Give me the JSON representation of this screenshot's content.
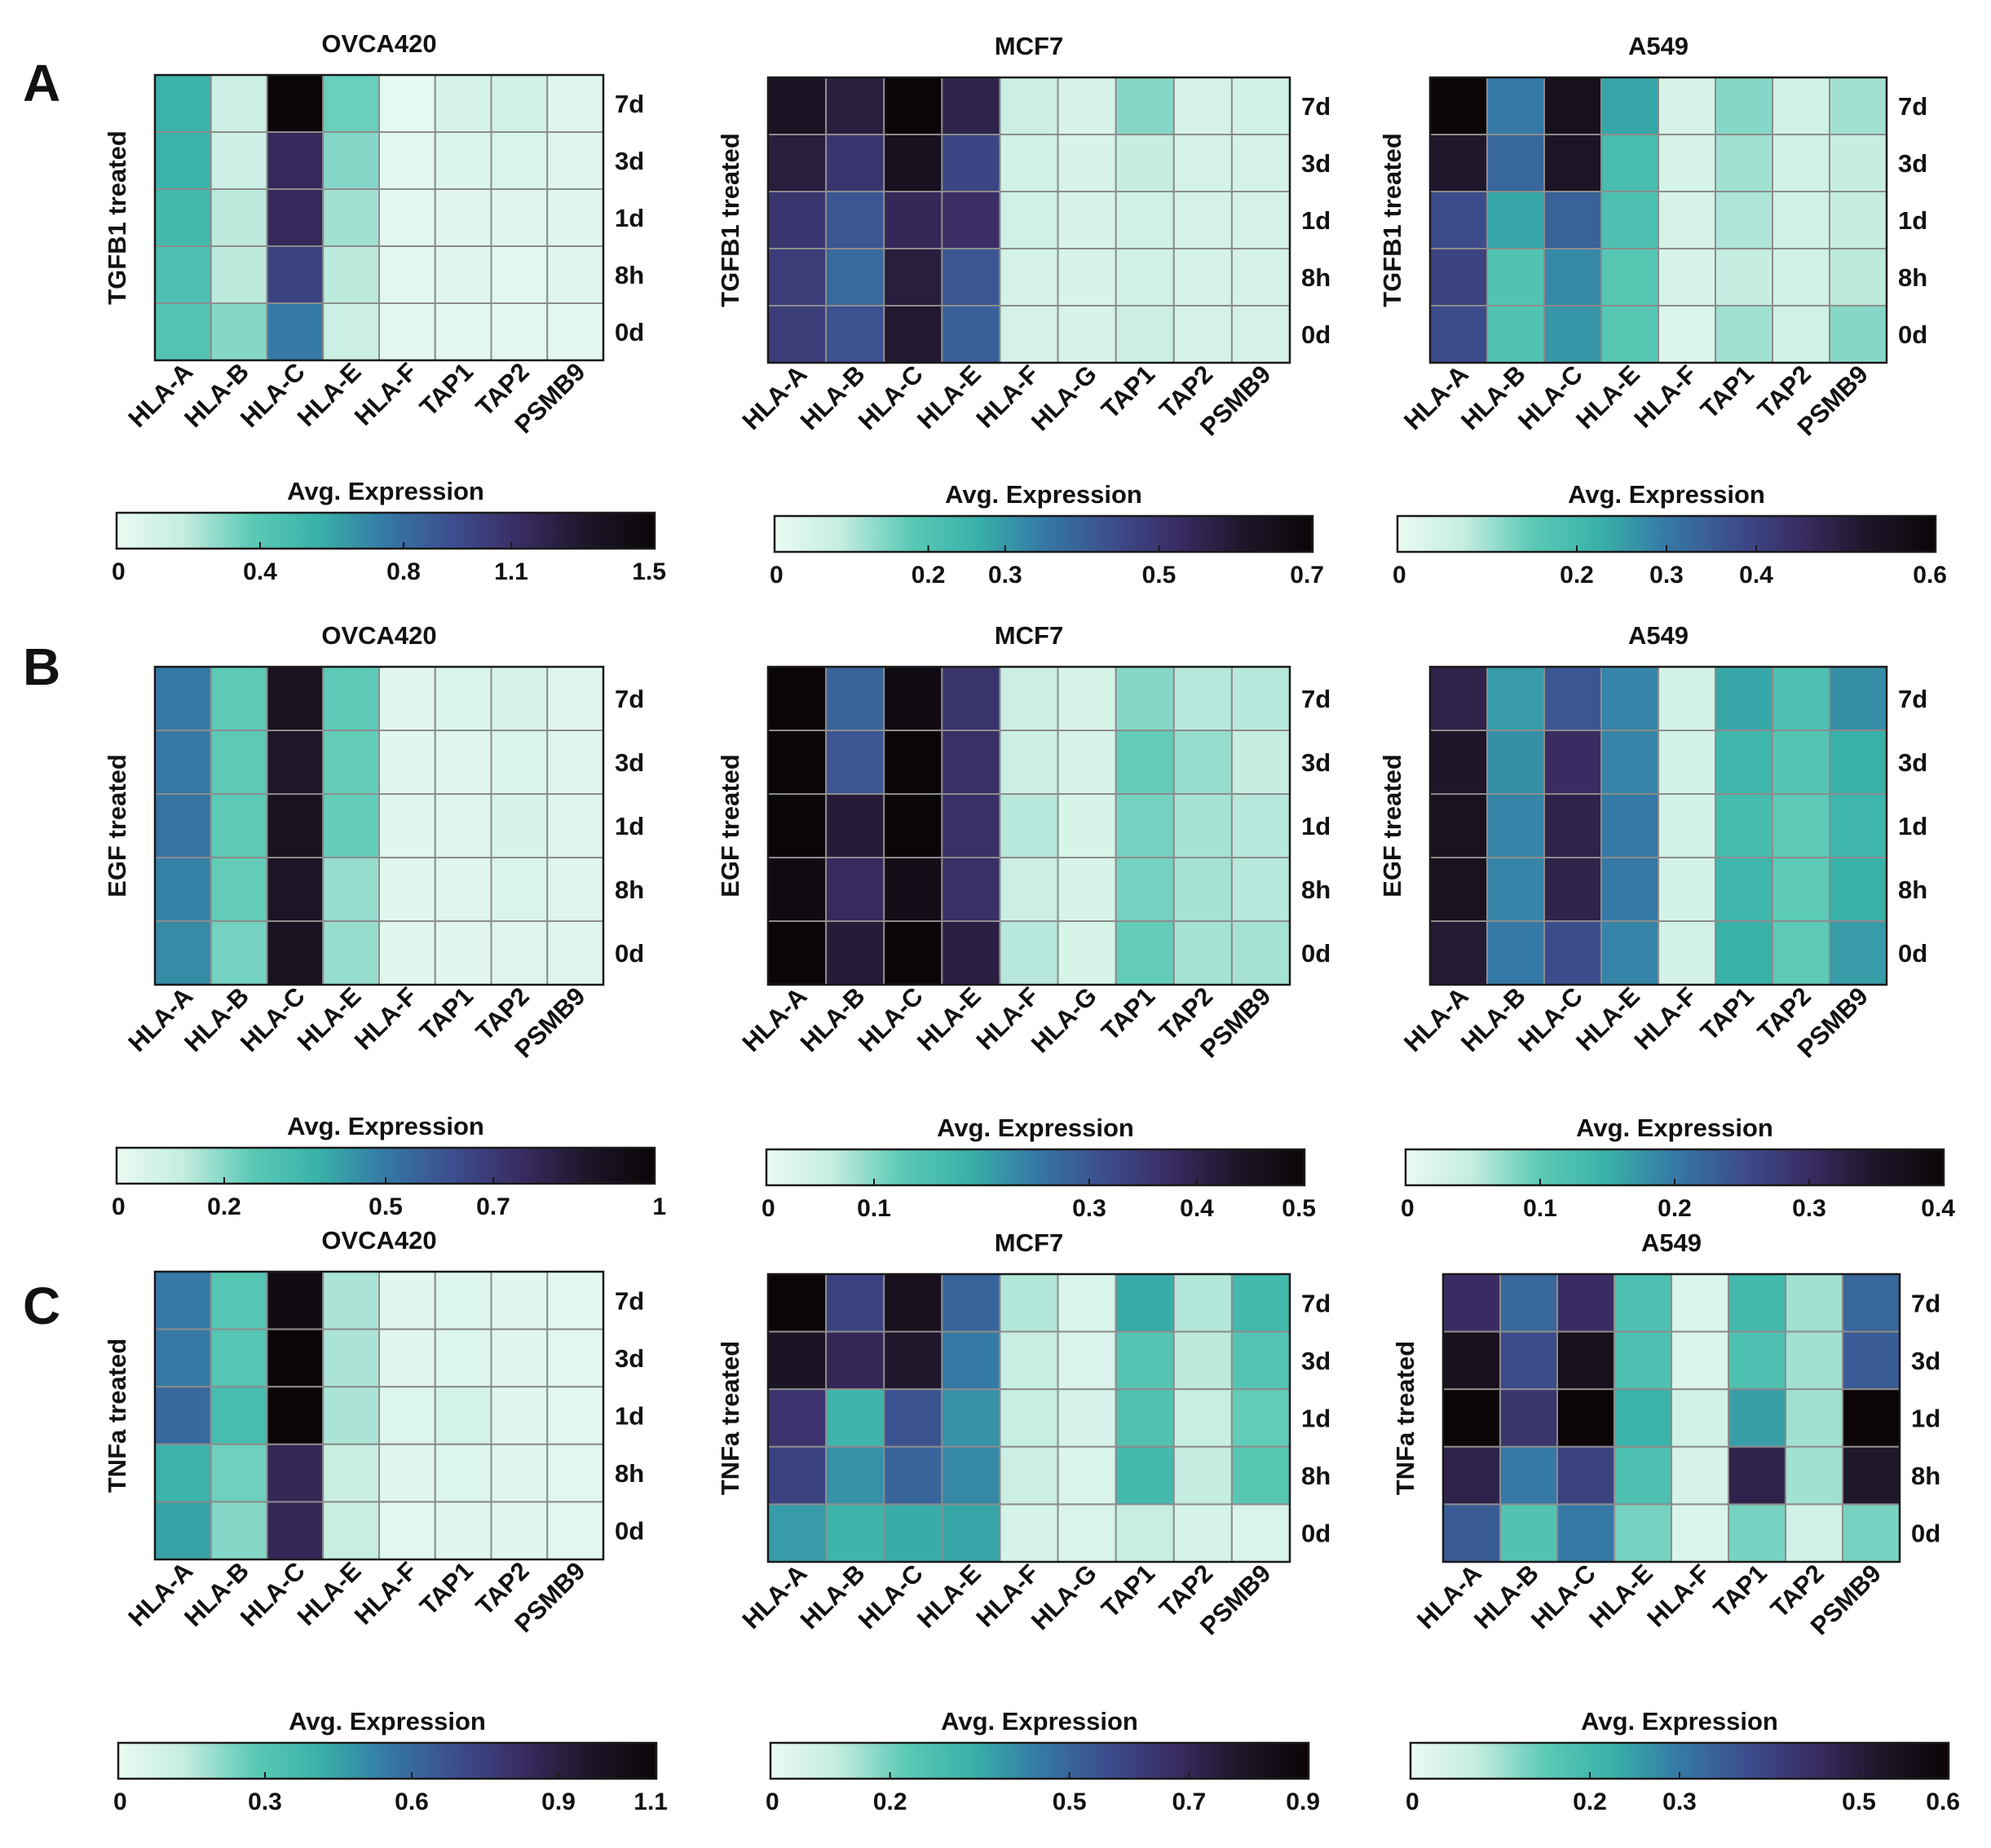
{
  "colormap": {
    "name": "white-teal-blue-purple-black",
    "stops": [
      "#eafbf2",
      "#c3ece0",
      "#5ccab6",
      "#38b1a9",
      "#3579a6",
      "#3c4d8e",
      "#3a2c63",
      "#1e1528",
      "#0b0507"
    ]
  },
  "panel_letters": [
    "A",
    "B",
    "C"
  ],
  "rows": [
    "7d",
    "3d",
    "1d",
    "8h",
    "0d"
  ],
  "colorbar_title": "Avg. Expression",
  "chart_data": [
    {
      "type": "heatmap",
      "panel": "A",
      "title": "OVCA420",
      "ylabel": "TGFB1 treated",
      "columns": [
        "HLA-A",
        "HLA-B",
        "HLA-C",
        "HLA-E",
        "HLA-F",
        "TAP1",
        "TAP2",
        "PSMB9"
      ],
      "rows": [
        "7d",
        "3d",
        "1d",
        "8h",
        "0d"
      ],
      "values": [
        [
          0.55,
          0.15,
          1.5,
          0.35,
          0.03,
          0.1,
          0.13,
          0.06
        ],
        [
          0.55,
          0.15,
          1.15,
          0.3,
          0.04,
          0.07,
          0.08,
          0.06
        ],
        [
          0.5,
          0.2,
          1.15,
          0.25,
          0.04,
          0.05,
          0.05,
          0.05
        ],
        [
          0.45,
          0.2,
          1.0,
          0.2,
          0.04,
          0.05,
          0.04,
          0.05
        ],
        [
          0.42,
          0.3,
          0.75,
          0.15,
          0.04,
          0.04,
          0.04,
          0.04
        ]
      ],
      "colorbar": {
        "label": "Avg. Expression",
        "min": 0,
        "max": 1.5,
        "ticks": [
          0,
          0.4,
          0.8,
          1.1,
          1.5
        ]
      }
    },
    {
      "type": "heatmap",
      "panel": "A",
      "title": "MCF7",
      "ylabel": "TGFB1 treated",
      "columns": [
        "HLA-A",
        "HLA-B",
        "HLA-C",
        "HLA-E",
        "HLA-F",
        "HLA-G",
        "TAP1",
        "TAP2",
        "PSMB9"
      ],
      "rows": [
        "7d",
        "3d",
        "1d",
        "8h",
        "0d"
      ],
      "values": [
        [
          0.62,
          0.58,
          0.7,
          0.56,
          0.07,
          0.04,
          0.14,
          0.05,
          0.06
        ],
        [
          0.58,
          0.5,
          0.64,
          0.46,
          0.06,
          0.04,
          0.08,
          0.05,
          0.05
        ],
        [
          0.5,
          0.42,
          0.54,
          0.52,
          0.06,
          0.04,
          0.06,
          0.05,
          0.05
        ],
        [
          0.48,
          0.38,
          0.58,
          0.42,
          0.05,
          0.04,
          0.06,
          0.05,
          0.05
        ],
        [
          0.48,
          0.43,
          0.6,
          0.4,
          0.05,
          0.04,
          0.07,
          0.05,
          0.05
        ]
      ],
      "colorbar": {
        "label": "Avg. Expression",
        "min": 0,
        "max": 0.7,
        "ticks": [
          0,
          0.2,
          0.3,
          0.5,
          0.7
        ]
      }
    },
    {
      "type": "heatmap",
      "panel": "A",
      "title": "A549",
      "ylabel": "TGFB1 treated",
      "columns": [
        "HLA-A",
        "HLA-B",
        "HLA-C",
        "HLA-E",
        "HLA-F",
        "TAP1",
        "TAP2",
        "PSMB9"
      ],
      "rows": [
        "7d",
        "3d",
        "1d",
        "8h",
        "0d"
      ],
      "values": [
        [
          0.6,
          0.3,
          0.55,
          0.24,
          0.04,
          0.12,
          0.05,
          0.1
        ],
        [
          0.52,
          0.33,
          0.53,
          0.19,
          0.04,
          0.1,
          0.05,
          0.07
        ],
        [
          0.38,
          0.24,
          0.34,
          0.18,
          0.04,
          0.09,
          0.05,
          0.07
        ],
        [
          0.4,
          0.17,
          0.28,
          0.16,
          0.04,
          0.07,
          0.05,
          0.08
        ],
        [
          0.38,
          0.17,
          0.26,
          0.16,
          0.03,
          0.1,
          0.05,
          0.12
        ]
      ],
      "colorbar": {
        "label": "Avg. Expression",
        "min": 0,
        "max": 0.6,
        "ticks": [
          0,
          0.2,
          0.3,
          0.4,
          0.6
        ]
      }
    },
    {
      "type": "heatmap",
      "panel": "B",
      "title": "OVCA420",
      "ylabel": "EGF treated",
      "columns": [
        "HLA-A",
        "HLA-B",
        "HLA-C",
        "HLA-E",
        "HLA-F",
        "TAP1",
        "TAP2",
        "PSMB9"
      ],
      "rows": [
        "7d",
        "3d",
        "1d",
        "8h",
        "0d"
      ],
      "values": [
        [
          0.5,
          0.25,
          0.9,
          0.25,
          0.03,
          0.05,
          0.06,
          0.04
        ],
        [
          0.5,
          0.25,
          0.87,
          0.24,
          0.03,
          0.04,
          0.05,
          0.04
        ],
        [
          0.52,
          0.25,
          0.9,
          0.24,
          0.03,
          0.04,
          0.06,
          0.04
        ],
        [
          0.48,
          0.24,
          0.88,
          0.18,
          0.03,
          0.04,
          0.05,
          0.04
        ],
        [
          0.46,
          0.22,
          0.9,
          0.18,
          0.03,
          0.03,
          0.04,
          0.04
        ]
      ],
      "colorbar": {
        "label": "Avg. Expression",
        "min": 0,
        "max": 1,
        "ticks": [
          0,
          0.2,
          0.5,
          0.7,
          1
        ]
      }
    },
    {
      "type": "heatmap",
      "panel": "B",
      "title": "MCF7",
      "ylabel": "EGF treated",
      "columns": [
        "HLA-A",
        "HLA-B",
        "HLA-C",
        "HLA-E",
        "HLA-F",
        "HLA-G",
        "TAP1",
        "TAP2",
        "PSMB9"
      ],
      "rows": [
        "7d",
        "3d",
        "1d",
        "8h",
        "0d"
      ],
      "values": [
        [
          0.5,
          0.28,
          0.48,
          0.36,
          0.05,
          0.03,
          0.1,
          0.07,
          0.07
        ],
        [
          0.5,
          0.3,
          0.5,
          0.37,
          0.05,
          0.03,
          0.12,
          0.09,
          0.06
        ],
        [
          0.5,
          0.42,
          0.5,
          0.37,
          0.07,
          0.03,
          0.11,
          0.08,
          0.07
        ],
        [
          0.48,
          0.38,
          0.47,
          0.37,
          0.05,
          0.03,
          0.11,
          0.08,
          0.07
        ],
        [
          0.5,
          0.42,
          0.5,
          0.41,
          0.07,
          0.03,
          0.12,
          0.08,
          0.08
        ]
      ],
      "colorbar": {
        "label": "Avg. Expression",
        "min": 0,
        "max": 0.5,
        "ticks": [
          0,
          0.1,
          0.3,
          0.4,
          0.5
        ]
      }
    },
    {
      "type": "heatmap",
      "panel": "B",
      "title": "A549",
      "ylabel": "EGF treated",
      "columns": [
        "HLA-A",
        "HLA-B",
        "HLA-C",
        "HLA-E",
        "HLA-F",
        "TAP1",
        "TAP2",
        "PSMB9"
      ],
      "rows": [
        "7d",
        "3d",
        "1d",
        "8h",
        "0d"
      ],
      "values": [
        [
          0.32,
          0.17,
          0.24,
          0.19,
          0.03,
          0.16,
          0.12,
          0.18
        ],
        [
          0.35,
          0.18,
          0.3,
          0.19,
          0.03,
          0.14,
          0.11,
          0.15
        ],
        [
          0.36,
          0.19,
          0.32,
          0.2,
          0.03,
          0.13,
          0.1,
          0.14
        ],
        [
          0.36,
          0.19,
          0.32,
          0.2,
          0.03,
          0.14,
          0.1,
          0.15
        ],
        [
          0.34,
          0.2,
          0.25,
          0.19,
          0.03,
          0.15,
          0.1,
          0.17
        ]
      ],
      "colorbar": {
        "label": "Avg. Expression",
        "min": 0,
        "max": 0.4,
        "ticks": [
          0,
          0.1,
          0.2,
          0.3,
          0.4
        ]
      }
    },
    {
      "type": "heatmap",
      "panel": "C",
      "title": "OVCA420",
      "ylabel": "TNFa treated",
      "columns": [
        "HLA-A",
        "HLA-B",
        "HLA-C",
        "HLA-E",
        "HLA-F",
        "TAP1",
        "TAP2",
        "PSMB9"
      ],
      "rows": [
        "7d",
        "3d",
        "1d",
        "8h",
        "0d"
      ],
      "values": [
        [
          0.55,
          0.3,
          1.05,
          0.17,
          0.04,
          0.05,
          0.04,
          0.03
        ],
        [
          0.55,
          0.3,
          1.1,
          0.17,
          0.04,
          0.05,
          0.04,
          0.03
        ],
        [
          0.6,
          0.35,
          1.1,
          0.17,
          0.05,
          0.08,
          0.04,
          0.03
        ],
        [
          0.4,
          0.25,
          0.85,
          0.12,
          0.04,
          0.05,
          0.04,
          0.03
        ],
        [
          0.45,
          0.22,
          0.85,
          0.12,
          0.03,
          0.04,
          0.04,
          0.03
        ]
      ],
      "colorbar": {
        "label": "Avg. Expression",
        "min": 0,
        "max": 1.1,
        "ticks": [
          0,
          0.3,
          0.6,
          0.9,
          1.1
        ]
      }
    },
    {
      "type": "heatmap",
      "panel": "C",
      "title": "MCF7",
      "ylabel": "TNFa treated",
      "columns": [
        "HLA-A",
        "HLA-B",
        "HLA-C",
        "HLA-E",
        "HLA-F",
        "HLA-G",
        "TAP1",
        "TAP2",
        "PSMB9"
      ],
      "rows": [
        "7d",
        "3d",
        "1d",
        "8h",
        "0d"
      ],
      "values": [
        [
          0.9,
          0.6,
          0.82,
          0.5,
          0.13,
          0.05,
          0.35,
          0.13,
          0.3
        ],
        [
          0.8,
          0.7,
          0.78,
          0.45,
          0.1,
          0.05,
          0.25,
          0.12,
          0.25
        ],
        [
          0.65,
          0.32,
          0.55,
          0.4,
          0.1,
          0.06,
          0.26,
          0.1,
          0.22
        ],
        [
          0.6,
          0.4,
          0.5,
          0.42,
          0.09,
          0.05,
          0.3,
          0.11,
          0.24
        ],
        [
          0.38,
          0.32,
          0.35,
          0.36,
          0.06,
          0.05,
          0.1,
          0.06,
          0.05
        ]
      ],
      "colorbar": {
        "label": "Avg. Expression",
        "min": 0,
        "max": 0.9,
        "ticks": [
          0,
          0.2,
          0.5,
          0.7,
          0.9
        ]
      }
    },
    {
      "type": "heatmap",
      "panel": "C",
      "title": "A549",
      "ylabel": "TNFa treated",
      "columns": [
        "HLA-A",
        "HLA-B",
        "HLA-C",
        "HLA-E",
        "HLA-F",
        "TAP1",
        "TAP2",
        "PSMB9"
      ],
      "rows": [
        "7d",
        "3d",
        "1d",
        "8h",
        "0d"
      ],
      "values": [
        [
          0.45,
          0.33,
          0.45,
          0.18,
          0.03,
          0.2,
          0.1,
          0.33
        ],
        [
          0.55,
          0.38,
          0.55,
          0.18,
          0.03,
          0.18,
          0.1,
          0.35
        ],
        [
          0.6,
          0.43,
          0.6,
          0.22,
          0.05,
          0.25,
          0.1,
          0.6
        ],
        [
          0.48,
          0.3,
          0.4,
          0.18,
          0.04,
          0.48,
          0.1,
          0.52
        ],
        [
          0.35,
          0.17,
          0.3,
          0.13,
          0.03,
          0.13,
          0.05,
          0.13
        ]
      ],
      "colorbar": {
        "label": "Avg. Expression",
        "min": 0,
        "max": 0.6,
        "ticks": [
          0,
          0.2,
          0.3,
          0.5,
          0.6
        ]
      }
    }
  ]
}
